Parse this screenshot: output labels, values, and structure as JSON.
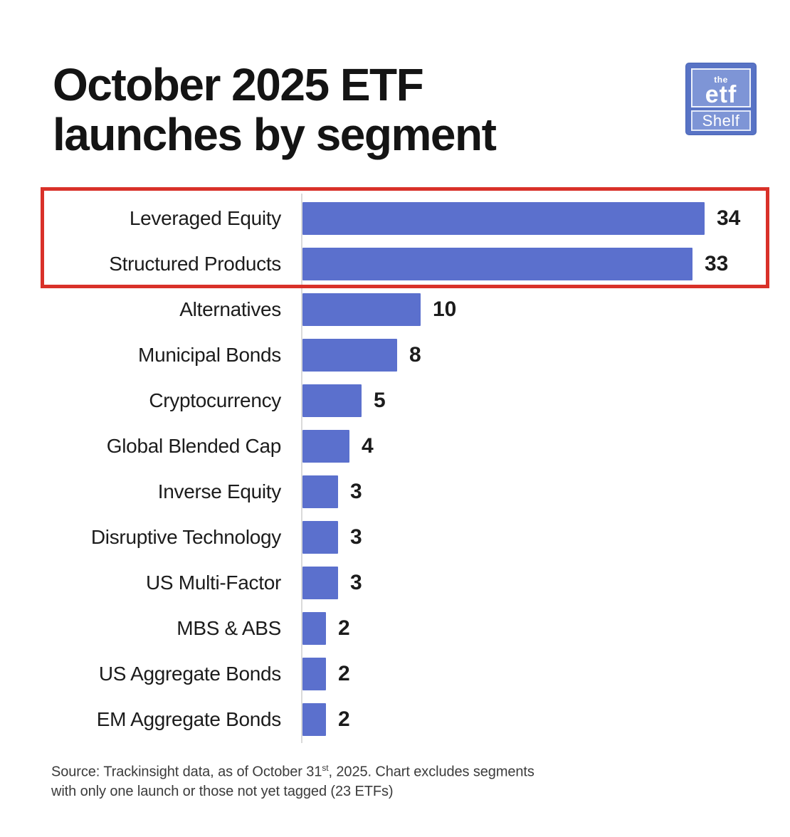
{
  "header": {
    "title_line1": "October 2025 ETF",
    "title_line2": "launches by segment",
    "logo": {
      "the": "the",
      "etf": "etf",
      "shelf": "Shelf",
      "outer_color": "#5873c5",
      "inner_color": "#7e95d6"
    }
  },
  "chart_data": {
    "type": "bar",
    "orientation": "horizontal",
    "title": "October 2025 ETF launches by segment",
    "categories": [
      "Leveraged Equity",
      "Structured Products",
      "Alternatives",
      "Municipal Bonds",
      "Cryptocurrency",
      "Global Blended Cap",
      "Inverse Equity",
      "Disruptive Technology",
      "US Multi-Factor",
      "MBS & ABS",
      "US Aggregate Bonds",
      "EM Aggregate Bonds"
    ],
    "values": [
      34,
      33,
      10,
      8,
      5,
      4,
      3,
      3,
      3,
      2,
      2,
      2
    ],
    "xlim": [
      0,
      34
    ],
    "bar_color": "#5b70cd",
    "value_labels_shown": true,
    "grid": false,
    "legend": false,
    "highlight_box": {
      "categories": [
        "Leveraged Equity",
        "Structured Products"
      ],
      "border_color": "#d93129"
    }
  },
  "footer": {
    "source_before_sup": "Source: Trackinsight data, as of October 31",
    "source_sup": "st",
    "source_after_sup": ", 2025. Chart excludes segments",
    "source_line2": "with only one launch or those not yet tagged (23 ETFs)"
  }
}
